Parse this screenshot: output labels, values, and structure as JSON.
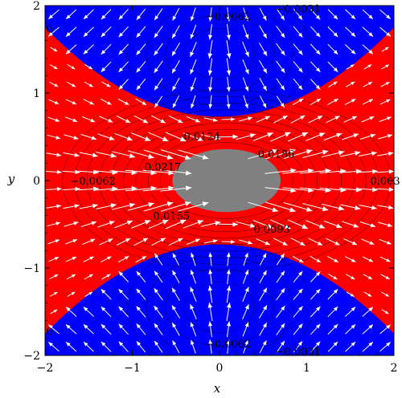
{
  "chart_data": {
    "type": "contour",
    "xlabel": "x",
    "ylabel": "y",
    "xlim": [
      -2,
      2
    ],
    "ylim": [
      -2,
      2
    ],
    "x_ticks": [
      -2,
      -1,
      0,
      1,
      2
    ],
    "y_ticks": [
      -2,
      -1,
      0,
      1,
      2
    ],
    "x_tick_labels": [
      "−2",
      "−1",
      "0",
      "1",
      "2"
    ],
    "y_tick_labels": [
      "−2",
      "−1",
      "0",
      "1",
      "2"
    ],
    "colors": {
      "region_outer": "#0000ff",
      "region_middle": "#ff0000",
      "obstacle": "#808080",
      "arrows": "#ffffff",
      "contours": "#000000"
    },
    "obstacle": {
      "center": [
        0.08,
        0.0
      ],
      "semi_axes": [
        0.62,
        0.36
      ]
    },
    "boundary_y": {
      "at_x0": 0.73,
      "at_edges": 1.75
    },
    "contour_labels": [
      {
        "text": "−0.0062",
        "x": 0.1,
        "y": 1.87
      },
      {
        "text": "−0.0031",
        "x": 0.9,
        "y": 1.96
      },
      {
        "text": "0",
        "x": -1.95,
        "y": 1.73
      },
      {
        "text": "0.0124",
        "x": -0.2,
        "y": 0.5
      },
      {
        "text": "0.0186",
        "x": 0.65,
        "y": 0.3
      },
      {
        "text": "0.0217",
        "x": -0.65,
        "y": 0.15
      },
      {
        "text": "−0.0062",
        "x": -1.45,
        "y": -0.01
      },
      {
        "text": "0.003",
        "x": 1.9,
        "y": -0.01
      },
      {
        "text": "0.0155",
        "x": -0.55,
        "y": -0.41
      },
      {
        "text": "0.0093",
        "x": 0.6,
        "y": -0.56
      },
      {
        "text": "0",
        "x": -1.95,
        "y": -1.73
      },
      {
        "text": "−0.0062",
        "x": 0.1,
        "y": -1.87
      },
      {
        "text": "−0.0031",
        "x": 0.9,
        "y": -1.96
      }
    ]
  }
}
